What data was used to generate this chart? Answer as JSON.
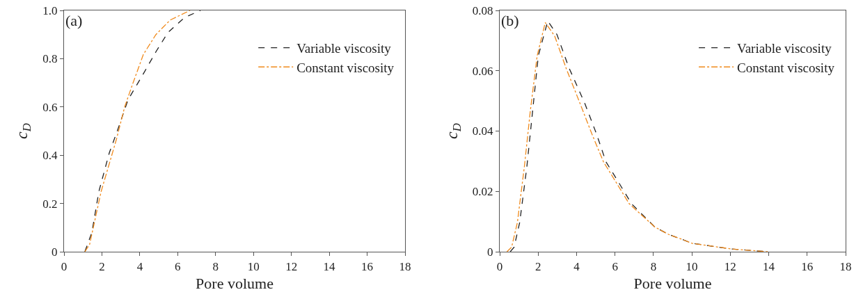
{
  "chart_data": [
    {
      "type": "line",
      "xlabel": "Pore volume",
      "ylabel": "c$_{D}$",
      "annotations": [
        "(a)"
      ],
      "legend": "top right",
      "grid": false,
      "marker": "none",
      "xlim": [
        0,
        18
      ],
      "xticks": [
        0,
        2,
        4,
        6,
        8,
        10,
        12,
        14,
        16,
        18
      ],
      "ylim": [
        0,
        1
      ],
      "yticks": [
        0,
        0.2,
        0.4,
        0.6,
        0.8,
        {
          "value": 1,
          "label": "1.0"
        }
      ],
      "series": [
        {
          "name": "Variable viscosity",
          "color": "#222222",
          "line_style": "dashed",
          "x": [
            1.1,
            1.47,
            1.84,
            2.39,
            2.81,
            3.38,
            4.25,
            4.86,
            5.48,
            6.35,
            7.2
          ],
          "values": [
            0,
            0.08,
            0.25,
            0.41,
            0.5,
            0.63,
            0.746,
            0.83,
            0.908,
            0.97,
            1.0
          ]
        },
        {
          "name": "Constant viscosity",
          "color": "#f08a1c",
          "line_style": "dashdot",
          "x": [
            1.1,
            1.35,
            1.96,
            2.77,
            3.2,
            3.63,
            4.19,
            4.85,
            5.6,
            6.65
          ],
          "values": [
            0,
            0.03,
            0.25,
            0.467,
            0.6,
            0.697,
            0.818,
            0.9,
            0.96,
            1.0
          ]
        }
      ]
    },
    {
      "type": "line",
      "xlabel": "Pore volume",
      "ylabel": "c$_{D}$",
      "annotations": [
        "(b)"
      ],
      "legend": "top right",
      "grid": false,
      "marker": "none",
      "xlim": [
        0,
        18
      ],
      "xticks": [
        0,
        2,
        4,
        6,
        8,
        10,
        12,
        14,
        16,
        18
      ],
      "ylim": [
        0,
        0.08
      ],
      "yticks": [
        0,
        0.02,
        0.04,
        0.06,
        0.08
      ],
      "series": [
        {
          "name": "Variable viscosity",
          "color": "#222222",
          "line_style": "dashed",
          "x": [
            0.55,
            0.75,
            1.04,
            1.41,
            1.71,
            2.01,
            2.5,
            2.98,
            3.59,
            4.44,
            5.04,
            5.53,
            6.13,
            6.86,
            8.07,
            8.8,
            9.53,
            10.0,
            12.07,
            13.95
          ],
          "values": [
            0,
            0.0015,
            0.0097,
            0.028,
            0.0465,
            0.065,
            0.0765,
            0.072,
            0.0612,
            0.049,
            0.039,
            0.0298,
            0.0236,
            0.0159,
            0.0082,
            0.0057,
            0.004,
            0.0028,
            0.0009,
            0
          ]
        },
        {
          "name": "Constant viscosity",
          "color": "#f08a1c",
          "line_style": "dashdot",
          "x": [
            0.375,
            0.62,
            0.92,
            1.28,
            1.59,
            1.95,
            2.37,
            2.86,
            3.47,
            4.19,
            4.8,
            5.4,
            6.0,
            6.74,
            8.07,
            8.8,
            9.53,
            10.0,
            12.07,
            13.95
          ],
          "values": [
            0,
            0.0015,
            0.0097,
            0.028,
            0.0465,
            0.065,
            0.076,
            0.0715,
            0.0606,
            0.049,
            0.039,
            0.0298,
            0.0236,
            0.0159,
            0.0082,
            0.0057,
            0.004,
            0.0028,
            0.0009,
            0
          ]
        }
      ]
    }
  ]
}
